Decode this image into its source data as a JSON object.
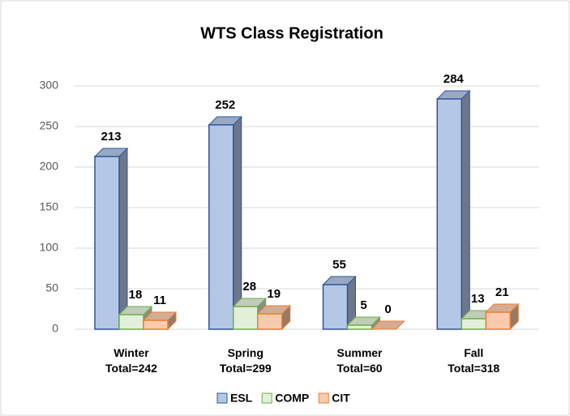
{
  "chart_data": {
    "type": "bar3d",
    "title": "WTS Class Registration",
    "categories": [
      "Winter\nTotal=242",
      "Spring\nTotal=299",
      "Summer\nTotal=60",
      "Fall\nTotal=318"
    ],
    "series": [
      {
        "name": "ESL",
        "color": "#b4c7e7",
        "values": [
          213,
          252,
          55,
          284
        ]
      },
      {
        "name": "COMP",
        "color": "#e2f0d9",
        "values": [
          18,
          28,
          5,
          13
        ]
      },
      {
        "name": "CIT",
        "color": "#f8cbad",
        "values": [
          11,
          19,
          0,
          21
        ]
      }
    ],
    "ylim": [
      0,
      300
    ],
    "yticks": [
      0,
      50,
      100,
      150,
      200,
      250,
      300
    ],
    "grid": true,
    "legend": "bottom"
  }
}
